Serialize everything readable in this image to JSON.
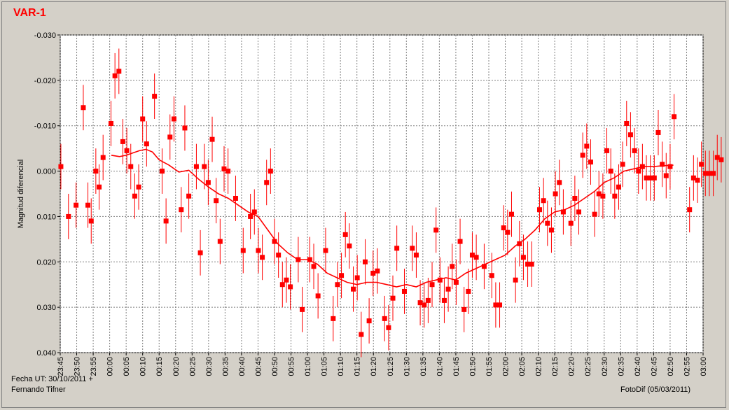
{
  "window": {
    "title": "VAR-1"
  },
  "footer": {
    "date_label": "Fecha UT: 30/10/2011 +",
    "author": "Fernando Tifner",
    "software": "FotoDif (05/03/2011)"
  },
  "colors": {
    "data": "#ff0000",
    "background": "#d4d0c8",
    "plot_area": "#ffffff",
    "grid": "#808080"
  },
  "chart_data": {
    "type": "scatter",
    "ylabel": "Magnitud diferencial",
    "xlabel": "",
    "ylim": [
      -0.03,
      0.04
    ],
    "y_inverted": true,
    "yticks": [
      "-0.030",
      "-0.020",
      "-0.010",
      "0.000",
      "0.010",
      "0.020",
      "0.030",
      "0.040"
    ],
    "x_range_minutes": [
      0,
      195
    ],
    "xticks": [
      "23:45",
      "23:50",
      "23:55",
      "00:00",
      "00:05",
      "00:10",
      "00:15",
      "00:20",
      "00:25",
      "00:30",
      "00:35",
      "00:40",
      "00:45",
      "00:50",
      "00:55",
      "01:00",
      "01:05",
      "01:10",
      "01:15",
      "01:20",
      "01:25",
      "01:30",
      "01:35",
      "01:40",
      "01:45",
      "01:50",
      "01:55",
      "02:00",
      "02:05",
      "02:10",
      "02:15",
      "02:20",
      "02:25",
      "02:30",
      "02:35",
      "02:40",
      "02:45",
      "02:50",
      "02:55",
      "03:00"
    ],
    "grid": true,
    "legend": "none",
    "error_bar": 0.005,
    "series": [
      {
        "type": "scatter_with_error_bars",
        "points": [
          [
            0.2,
            -0.001
          ],
          [
            2.5,
            0.01
          ],
          [
            4.8,
            0.0075
          ],
          [
            7.0,
            -0.014
          ],
          [
            8.4,
            0.0075
          ],
          [
            9.4,
            0.011
          ],
          [
            10.8,
            0.0
          ],
          [
            11.8,
            0.0035
          ],
          [
            13.0,
            -0.003
          ],
          [
            15.4,
            -0.0105
          ],
          [
            16.6,
            -0.021
          ],
          [
            17.8,
            -0.022
          ],
          [
            19.0,
            -0.0065
          ],
          [
            20.2,
            -0.0045
          ],
          [
            21.4,
            -0.001
          ],
          [
            22.6,
            0.0055
          ],
          [
            23.8,
            0.0035
          ],
          [
            25.0,
            -0.0115
          ],
          [
            26.2,
            -0.006
          ],
          [
            28.6,
            -0.0165
          ],
          [
            30.9,
            0.0
          ],
          [
            32.1,
            0.011
          ],
          [
            33.3,
            -0.0075
          ],
          [
            34.5,
            -0.0115
          ],
          [
            36.7,
            0.0085
          ],
          [
            37.8,
            -0.0095
          ],
          [
            39.0,
            0.0055
          ],
          [
            41.3,
            -0.001
          ],
          [
            42.5,
            0.018
          ],
          [
            43.7,
            -0.001
          ],
          [
            44.9,
            0.0025
          ],
          [
            46.1,
            -0.007
          ],
          [
            47.3,
            0.0065
          ],
          [
            48.5,
            0.0155
          ],
          [
            49.7,
            -0.0005
          ],
          [
            50.9,
            0.0
          ],
          [
            53.2,
            0.006
          ],
          [
            55.5,
            0.0175
          ],
          [
            57.7,
            0.01
          ],
          [
            58.9,
            0.009
          ],
          [
            60.1,
            0.0175
          ],
          [
            61.3,
            0.019
          ],
          [
            62.6,
            0.0025
          ],
          [
            63.8,
            0.0
          ],
          [
            65.0,
            0.0155
          ],
          [
            66.2,
            0.0185
          ],
          [
            67.4,
            0.025
          ],
          [
            68.6,
            0.024
          ],
          [
            69.8,
            0.0255
          ],
          [
            72.2,
            0.0195
          ],
          [
            73.4,
            0.0305
          ],
          [
            75.7,
            0.0195
          ],
          [
            76.9,
            0.021
          ],
          [
            78.2,
            0.0275
          ],
          [
            80.5,
            0.0175
          ],
          [
            82.8,
            0.0325
          ],
          [
            84.1,
            0.025
          ],
          [
            85.3,
            0.023
          ],
          [
            86.5,
            0.014
          ],
          [
            87.7,
            0.0165
          ],
          [
            88.9,
            0.026
          ],
          [
            90.1,
            0.0235
          ],
          [
            91.3,
            0.036
          ],
          [
            92.5,
            0.02
          ],
          [
            93.7,
            0.033
          ],
          [
            94.9,
            0.0225
          ],
          [
            96.2,
            0.022
          ],
          [
            98.4,
            0.0325
          ],
          [
            99.6,
            0.0345
          ],
          [
            100.9,
            0.028
          ],
          [
            102.1,
            0.017
          ],
          [
            104.4,
            0.0265
          ],
          [
            106.8,
            0.017
          ],
          [
            108.0,
            0.0185
          ],
          [
            109.2,
            0.029
          ],
          [
            110.4,
            0.0295
          ],
          [
            111.6,
            0.0285
          ],
          [
            112.8,
            0.025
          ],
          [
            114.0,
            0.013
          ],
          [
            115.2,
            0.024
          ],
          [
            116.5,
            0.0285
          ],
          [
            117.7,
            0.026
          ],
          [
            118.9,
            0.021
          ],
          [
            120.1,
            0.0245
          ],
          [
            121.3,
            0.0155
          ],
          [
            122.5,
            0.0305
          ],
          [
            123.8,
            0.0265
          ],
          [
            125.0,
            0.0185
          ],
          [
            126.2,
            0.019
          ],
          [
            128.6,
            0.021
          ],
          [
            130.9,
            0.023
          ],
          [
            132.1,
            0.0295
          ],
          [
            133.3,
            0.0295
          ],
          [
            134.5,
            0.0125
          ],
          [
            135.7,
            0.0135
          ],
          [
            136.9,
            0.0095
          ],
          [
            138.1,
            0.024
          ],
          [
            139.3,
            0.016
          ],
          [
            140.5,
            0.019
          ],
          [
            141.8,
            0.0205
          ],
          [
            143.0,
            0.0205
          ],
          [
            145.4,
            0.0085
          ],
          [
            146.6,
            0.0065
          ],
          [
            147.8,
            0.0115
          ],
          [
            149.0,
            0.013
          ],
          [
            150.2,
            0.005
          ],
          [
            151.4,
            0.0025
          ],
          [
            152.6,
            0.009
          ],
          [
            154.9,
            0.0115
          ],
          [
            156.1,
            0.006
          ],
          [
            157.3,
            0.009
          ],
          [
            158.5,
            -0.0035
          ],
          [
            159.7,
            -0.0055
          ],
          [
            160.9,
            -0.002
          ],
          [
            162.1,
            0.0095
          ],
          [
            163.4,
            0.005
          ],
          [
            164.6,
            0.0055
          ],
          [
            165.8,
            -0.0045
          ],
          [
            167.0,
            0.0
          ],
          [
            168.2,
            0.0055
          ],
          [
            169.4,
            0.0035
          ],
          [
            170.6,
            -0.0015
          ],
          [
            171.8,
            -0.0105
          ],
          [
            173.0,
            -0.008
          ],
          [
            174.2,
            -0.0045
          ],
          [
            175.4,
            0.0
          ],
          [
            176.6,
            -0.001
          ],
          [
            177.8,
            0.0015
          ],
          [
            179.0,
            0.0015
          ],
          [
            180.2,
            0.0015
          ],
          [
            181.4,
            -0.0085
          ],
          [
            182.6,
            -0.0015
          ],
          [
            183.8,
            0.001
          ],
          [
            185.0,
            -0.001
          ],
          [
            186.2,
            -0.012
          ],
          [
            190.9,
            0.0085
          ],
          [
            192.1,
            0.0015
          ],
          [
            193.3,
            0.002
          ],
          [
            194.5,
            -0.0015
          ],
          [
            195.7,
            0.0005
          ],
          [
            196.9,
            0.0005
          ],
          [
            198.1,
            0.0005
          ],
          [
            199.3,
            -0.003
          ],
          [
            200.5,
            -0.0025
          ]
        ]
      },
      {
        "type": "line",
        "points": [
          [
            15.5,
            -0.0035
          ],
          [
            18.0,
            -0.0032
          ],
          [
            20.0,
            -0.0035
          ],
          [
            22.0,
            -0.004
          ],
          [
            24.0,
            -0.0045
          ],
          [
            26.0,
            -0.0048
          ],
          [
            28.0,
            -0.0042
          ],
          [
            30.0,
            -0.0025
          ],
          [
            33.0,
            -0.0013
          ],
          [
            36.0,
            0.0002
          ],
          [
            39.0,
            -0.0002
          ],
          [
            42.0,
            0.0018
          ],
          [
            45.0,
            0.0035
          ],
          [
            48.0,
            0.005
          ],
          [
            51.0,
            0.006
          ],
          [
            54.0,
            0.0075
          ],
          [
            57.0,
            0.009
          ],
          [
            60.0,
            0.01
          ],
          [
            63.0,
            0.013
          ],
          [
            66.0,
            0.016
          ],
          [
            69.0,
            0.018
          ],
          [
            72.0,
            0.0195
          ],
          [
            75.0,
            0.0195
          ],
          [
            78.0,
            0.0205
          ],
          [
            81.0,
            0.0225
          ],
          [
            84.0,
            0.0235
          ],
          [
            87.0,
            0.0245
          ],
          [
            90.0,
            0.025
          ],
          [
            93.0,
            0.0245
          ],
          [
            96.0,
            0.0245
          ],
          [
            99.0,
            0.025
          ],
          [
            102.0,
            0.0255
          ],
          [
            105.0,
            0.025
          ],
          [
            108.0,
            0.0255
          ],
          [
            111.0,
            0.0245
          ],
          [
            114.0,
            0.024
          ],
          [
            117.0,
            0.0235
          ],
          [
            120.0,
            0.024
          ],
          [
            123.0,
            0.0225
          ],
          [
            126.0,
            0.0215
          ],
          [
            129.0,
            0.0205
          ],
          [
            132.0,
            0.0195
          ],
          [
            135.0,
            0.0185
          ],
          [
            138.0,
            0.0165
          ],
          [
            141.0,
            0.015
          ],
          [
            144.0,
            0.013
          ],
          [
            147.0,
            0.0105
          ],
          [
            150.0,
            0.009
          ],
          [
            153.0,
            0.0085
          ],
          [
            156.0,
            0.0075
          ],
          [
            159.0,
            0.006
          ],
          [
            162.0,
            0.0045
          ],
          [
            165.0,
            0.0025
          ],
          [
            168.0,
            0.0015
          ],
          [
            171.0,
            0.0
          ],
          [
            174.0,
            -0.0005
          ],
          [
            177.0,
            -0.001
          ],
          [
            180.0,
            -0.001
          ],
          [
            183.0,
            -0.0012
          ],
          [
            186.0,
            -0.0013
          ]
        ]
      }
    ]
  }
}
